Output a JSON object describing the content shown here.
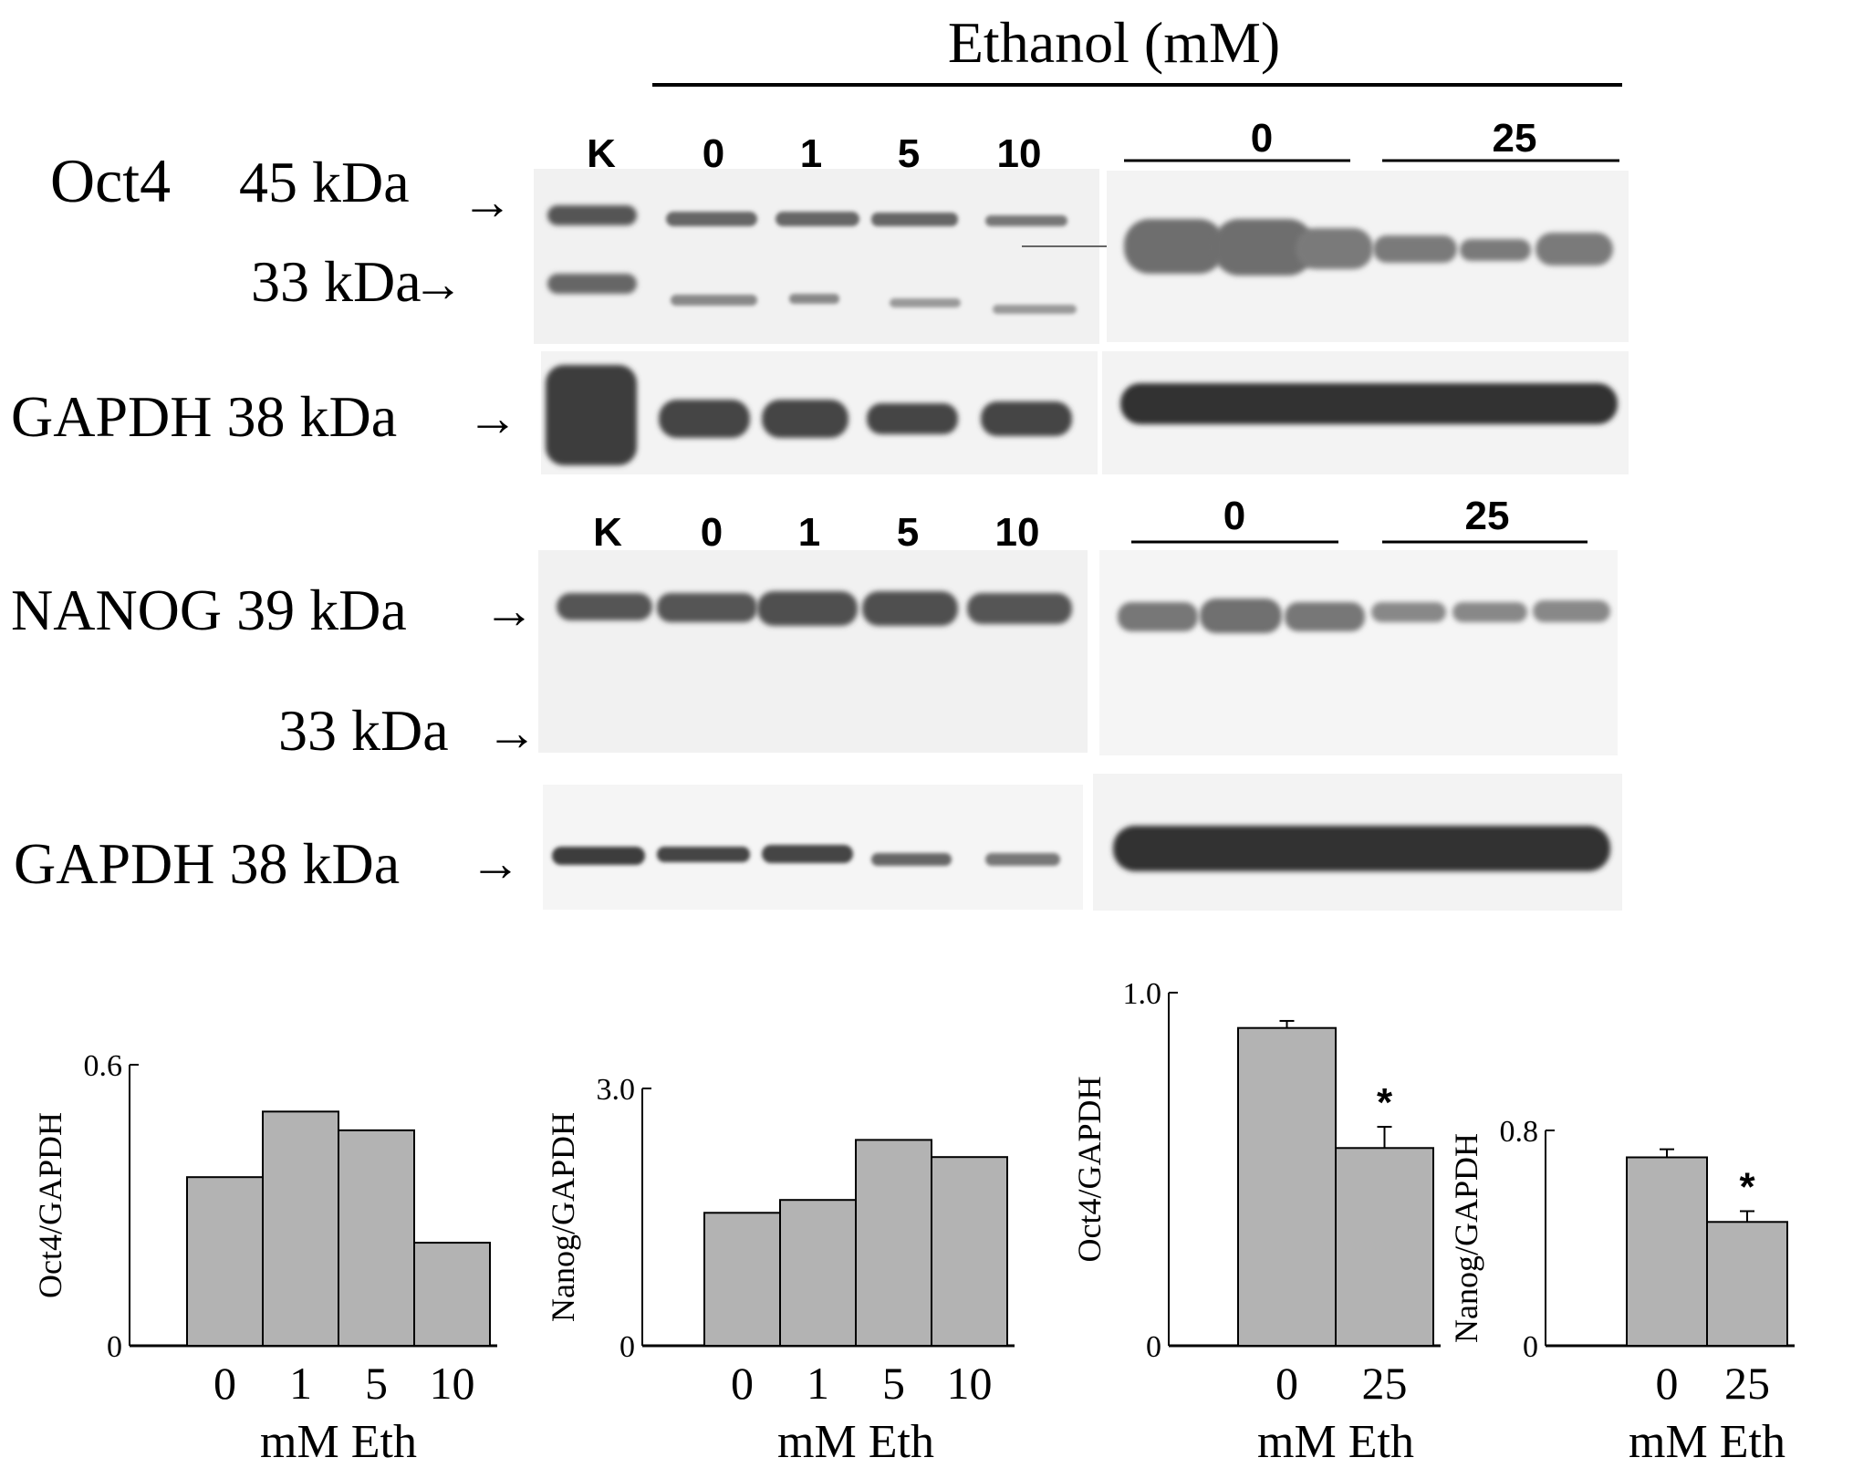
{
  "figure": {
    "header": "Ethanol (mM)",
    "blots": [
      {
        "protein_label": "Oct4",
        "marker_labels": [
          "45  kDa",
          "33  kDa"
        ],
        "loading_label": "GAPDH 38 kDa",
        "left_lanes": [
          "K",
          "0",
          "1",
          "5",
          "10"
        ],
        "right_groups": [
          "0",
          "25"
        ]
      },
      {
        "protein_label": "NANOG 39 kDa",
        "marker_labels": [
          "33 kDa"
        ],
        "loading_label": "GAPDH 38 kDa",
        "left_lanes": [
          "K",
          "0",
          "1",
          "5",
          "10"
        ],
        "right_groups": [
          "0",
          "25"
        ]
      }
    ]
  },
  "chart_data": [
    {
      "type": "bar",
      "categories": [
        "0",
        "1",
        "5",
        "10"
      ],
      "values": [
        0.36,
        0.5,
        0.46,
        0.22
      ],
      "xlabel": "mM Eth",
      "ylabel": "Oct4/GAPDH",
      "ylim": [
        0,
        0.6
      ],
      "yticks": [
        "0",
        "0.6"
      ],
      "bar_color": "#b3b3b3"
    },
    {
      "type": "bar",
      "categories": [
        "0",
        "1",
        "5",
        "10"
      ],
      "values": [
        1.55,
        1.7,
        2.4,
        2.2
      ],
      "xlabel": "mM Eth",
      "ylabel": "Nanog/GAPDH",
      "ylim": [
        0,
        3.0
      ],
      "yticks": [
        "0",
        "3.0"
      ],
      "bar_color": "#b3b3b3"
    },
    {
      "type": "bar",
      "categories": [
        "0",
        "25"
      ],
      "values": [
        0.9,
        0.56
      ],
      "errors": [
        0.02,
        0.06
      ],
      "significance": [
        "",
        "*"
      ],
      "xlabel": "mM Eth",
      "ylabel": "Oct4/GAPDH",
      "ylim": [
        0,
        1.0
      ],
      "yticks": [
        "0",
        "1.0"
      ],
      "bar_color": "#b3b3b3"
    },
    {
      "type": "bar",
      "categories": [
        "0",
        "25"
      ],
      "values": [
        0.7,
        0.46
      ],
      "errors": [
        0.03,
        0.04
      ],
      "significance": [
        "",
        "*"
      ],
      "xlabel": "mM Eth",
      "ylabel": "Nanog/GAPDH",
      "ylim": [
        0,
        0.8
      ],
      "yticks": [
        "0",
        "0.8"
      ],
      "bar_color": "#b3b3b3"
    }
  ]
}
